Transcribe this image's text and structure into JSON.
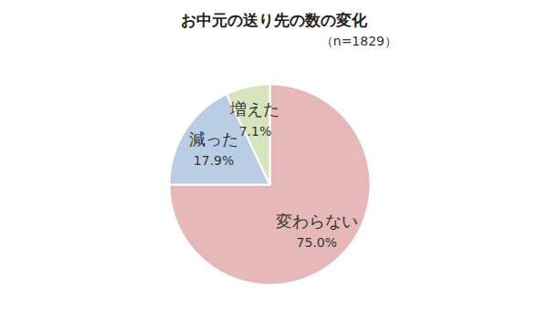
{
  "chart_data": {
    "type": "pie",
    "title": "お中元の送り先の数の変化",
    "subtitle": "（n=1829）",
    "categories": [
      "変わらない",
      "減った",
      "増えた"
    ],
    "values": [
      75.0,
      17.9,
      7.1
    ],
    "value_labels": [
      "75.0%",
      "17.9%",
      "7.1%"
    ],
    "colors": [
      "#e6b9b8",
      "#b9cde5",
      "#d7e4bd"
    ],
    "data_labels": true
  }
}
